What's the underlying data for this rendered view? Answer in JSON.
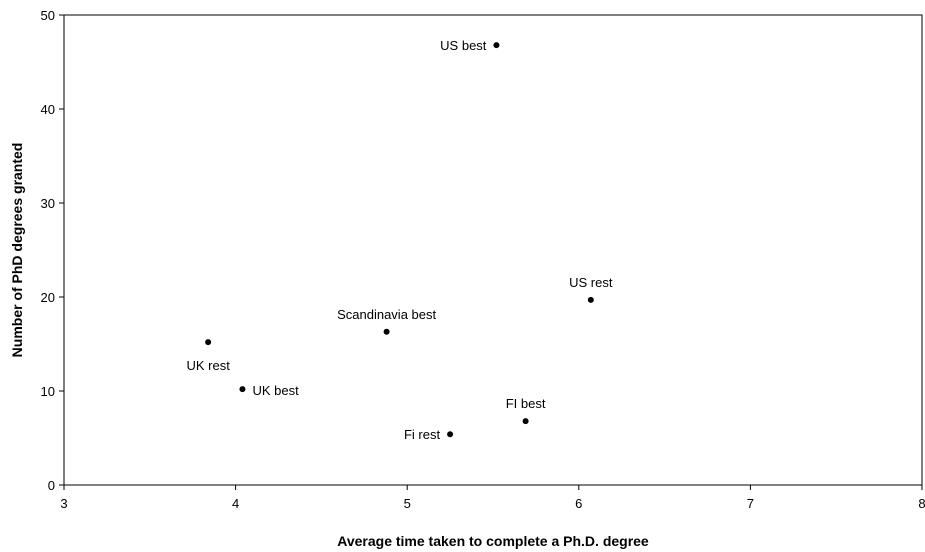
{
  "chart_data": {
    "type": "scatter",
    "title": "",
    "xlabel": "Average time taken to complete a Ph.D. degree",
    "ylabel": "Number of PhD degrees granted",
    "xlim": [
      3,
      8
    ],
    "ylim": [
      0,
      50
    ],
    "x_ticks": [
      3,
      4,
      5,
      6,
      7,
      8
    ],
    "y_ticks": [
      0,
      10,
      20,
      30,
      40,
      50
    ],
    "grid": false,
    "legend": "none",
    "points": [
      {
        "label": "US best",
        "x": 5.52,
        "y": 46.8,
        "label_pos": "left"
      },
      {
        "label": "US rest",
        "x": 6.07,
        "y": 19.7,
        "label_pos": "above"
      },
      {
        "label": "Scandinavia best",
        "x": 4.88,
        "y": 16.3,
        "label_pos": "above"
      },
      {
        "label": "UK rest",
        "x": 3.84,
        "y": 15.2,
        "label_pos": "below"
      },
      {
        "label": "UK best",
        "x": 4.04,
        "y": 10.2,
        "label_pos": "right"
      },
      {
        "label": "FI best",
        "x": 5.69,
        "y": 6.8,
        "label_pos": "above"
      },
      {
        "label": "Fi rest",
        "x": 5.25,
        "y": 5.4,
        "label_pos": "left"
      }
    ],
    "colors": {
      "marker": "#000000",
      "axis": "#000000"
    }
  }
}
